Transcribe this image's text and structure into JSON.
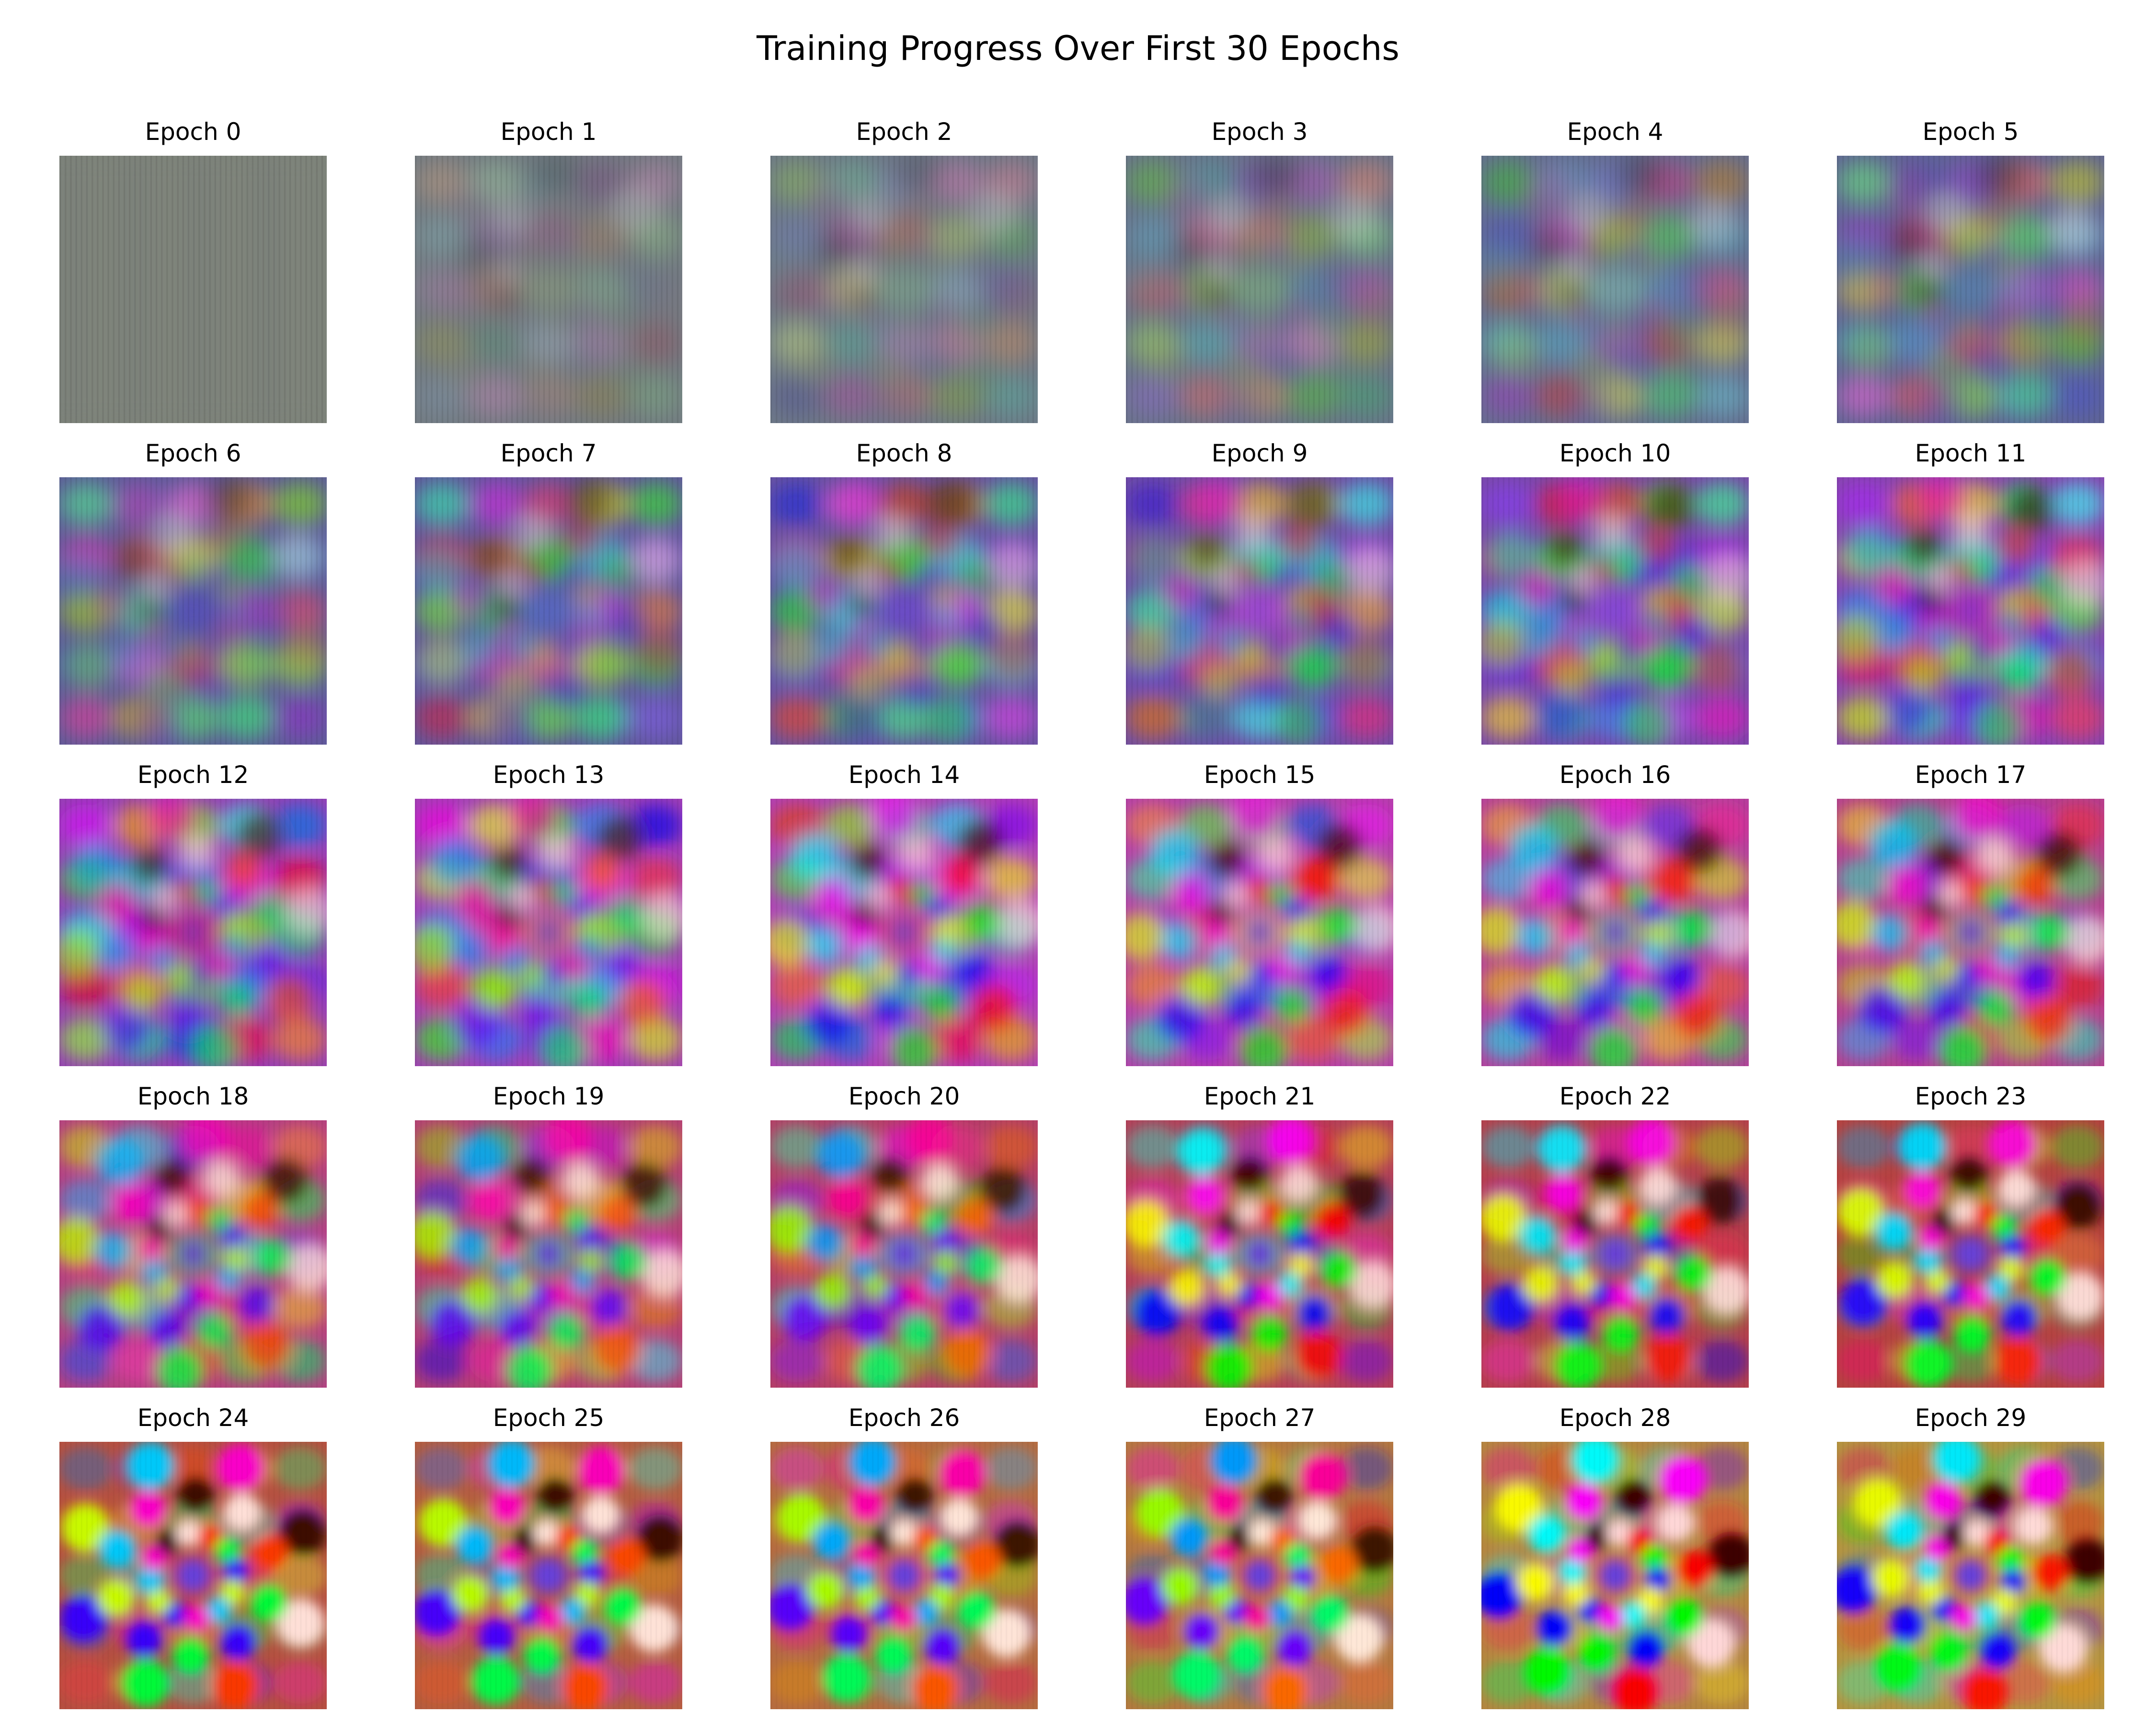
{
  "figure": {
    "title": "Training Progress Over First 30 Epochs"
  },
  "panels": [
    {
      "label": "Epoch 0",
      "epoch": 0
    },
    {
      "label": "Epoch 1",
      "epoch": 1
    },
    {
      "label": "Epoch 2",
      "epoch": 2
    },
    {
      "label": "Epoch 3",
      "epoch": 3
    },
    {
      "label": "Epoch 4",
      "epoch": 4
    },
    {
      "label": "Epoch 5",
      "epoch": 5
    },
    {
      "label": "Epoch 6",
      "epoch": 6
    },
    {
      "label": "Epoch 7",
      "epoch": 7
    },
    {
      "label": "Epoch 8",
      "epoch": 8
    },
    {
      "label": "Epoch 9",
      "epoch": 9
    },
    {
      "label": "Epoch 10",
      "epoch": 10
    },
    {
      "label": "Epoch 11",
      "epoch": 11
    },
    {
      "label": "Epoch 12",
      "epoch": 12
    },
    {
      "label": "Epoch 13",
      "epoch": 13
    },
    {
      "label": "Epoch 14",
      "epoch": 14
    },
    {
      "label": "Epoch 15",
      "epoch": 15
    },
    {
      "label": "Epoch 16",
      "epoch": 16
    },
    {
      "label": "Epoch 17",
      "epoch": 17
    },
    {
      "label": "Epoch 18",
      "epoch": 18
    },
    {
      "label": "Epoch 19",
      "epoch": 19
    },
    {
      "label": "Epoch 20",
      "epoch": 20
    },
    {
      "label": "Epoch 21",
      "epoch": 21
    },
    {
      "label": "Epoch 22",
      "epoch": 22
    },
    {
      "label": "Epoch 23",
      "epoch": 23
    },
    {
      "label": "Epoch 24",
      "epoch": 24
    },
    {
      "label": "Epoch 25",
      "epoch": 25
    },
    {
      "label": "Epoch 26",
      "epoch": 26
    },
    {
      "label": "Epoch 27",
      "epoch": 27
    },
    {
      "label": "Epoch 28",
      "epoch": 28
    },
    {
      "label": "Epoch 29",
      "epoch": 29
    }
  ]
}
